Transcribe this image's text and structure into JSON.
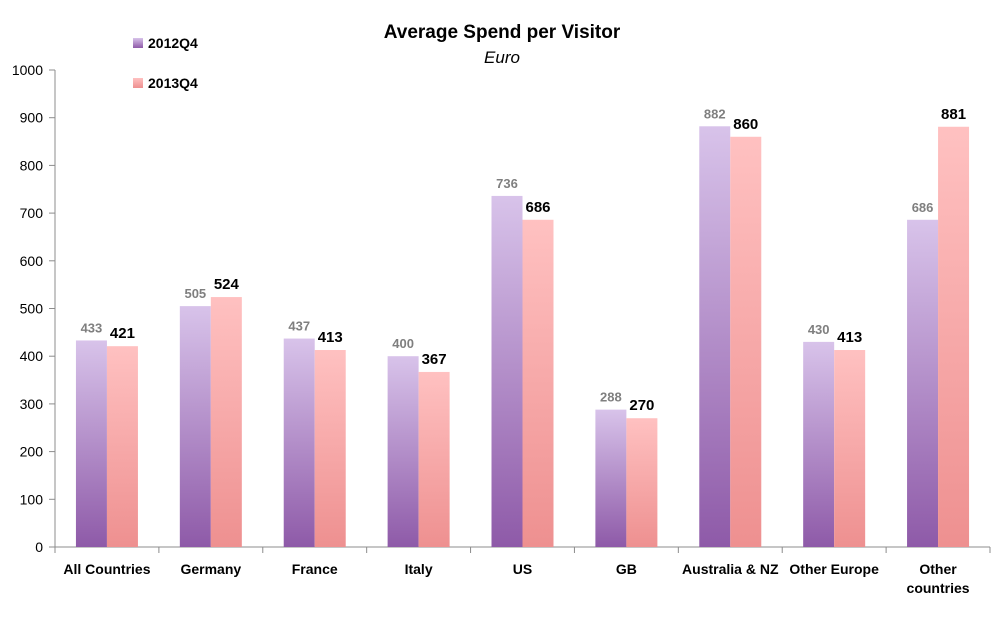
{
  "chart_data": {
    "type": "bar",
    "title": "Average Spend per Visitor",
    "subtitle": "Euro",
    "xlabel": "",
    "ylabel": "",
    "ylim": [
      0,
      1000
    ],
    "yticks": [
      0,
      100,
      200,
      300,
      400,
      500,
      600,
      700,
      800,
      900,
      1000
    ],
    "grid": false,
    "legend_position": "top-left",
    "categories": [
      [
        "All Countries"
      ],
      [
        "Germany"
      ],
      [
        "France"
      ],
      [
        "Italy"
      ],
      [
        "US"
      ],
      [
        "GB"
      ],
      [
        "Australia & NZ"
      ],
      [
        "Other Europe"
      ],
      [
        "Other",
        "countries"
      ]
    ],
    "series": [
      {
        "name": "2012Q4",
        "values": [
          433,
          505,
          437,
          400,
          736,
          288,
          882,
          430,
          686
        ],
        "color_top": "#d8c3ea",
        "color_bottom": "#8e5aa8",
        "label_color": "#7f7f7f"
      },
      {
        "name": "2013Q4",
        "values": [
          421,
          524,
          413,
          367,
          686,
          270,
          860,
          413,
          881
        ],
        "color_top": "#ffc1c1",
        "color_bottom": "#ee9090",
        "label_color": "#000000"
      }
    ]
  }
}
